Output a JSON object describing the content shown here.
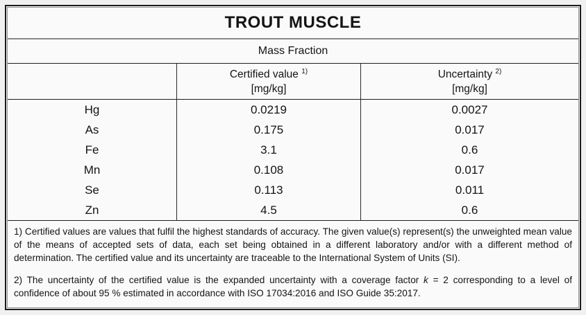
{
  "table": {
    "title": "TROUT MUSCLE",
    "subtitle": "Mass Fraction",
    "columns": {
      "certified": {
        "label": "Certified value",
        "footnote_ref": "1)",
        "unit": "[mg/kg]"
      },
      "uncertainty": {
        "label": "Uncertainty",
        "footnote_ref": "2)",
        "unit": "[mg/kg]"
      }
    },
    "rows": [
      {
        "element": "Hg",
        "certified": "0.0219",
        "uncertainty": "0.0027"
      },
      {
        "element": "As",
        "certified": "0.175",
        "uncertainty": "0.017"
      },
      {
        "element": "Fe",
        "certified": "3.1",
        "uncertainty": "0.6"
      },
      {
        "element": "Mn",
        "certified": "0.108",
        "uncertainty": "0.017"
      },
      {
        "element": "Se",
        "certified": "0.113",
        "uncertainty": "0.011"
      },
      {
        "element": "Zn",
        "certified": "4.5",
        "uncertainty": "0.6"
      }
    ],
    "footnotes": [
      {
        "text": "1) Certified values are values that fulfil the highest standards of accuracy. The given value(s) represent(s) the unweighted mean value of the means of accepted sets of data, each set being obtained in a different laboratory and/or with a different method of determination. The certified value and its uncertainty are traceable to the International System of Units (SI)."
      },
      {
        "pre": "2) The uncertainty of the certified value is the expanded uncertainty with a coverage factor ",
        "k": "k",
        "post": " = 2 corresponding to a level of confidence of about 95 % estimated in accordance with ISO 17034:2016 and ISO Guide 35:2017."
      }
    ],
    "colors": {
      "border_dark": "#1c1c1c",
      "border_gray": "#8d8d8d",
      "background": "#fafafa",
      "text": "#141414"
    }
  }
}
